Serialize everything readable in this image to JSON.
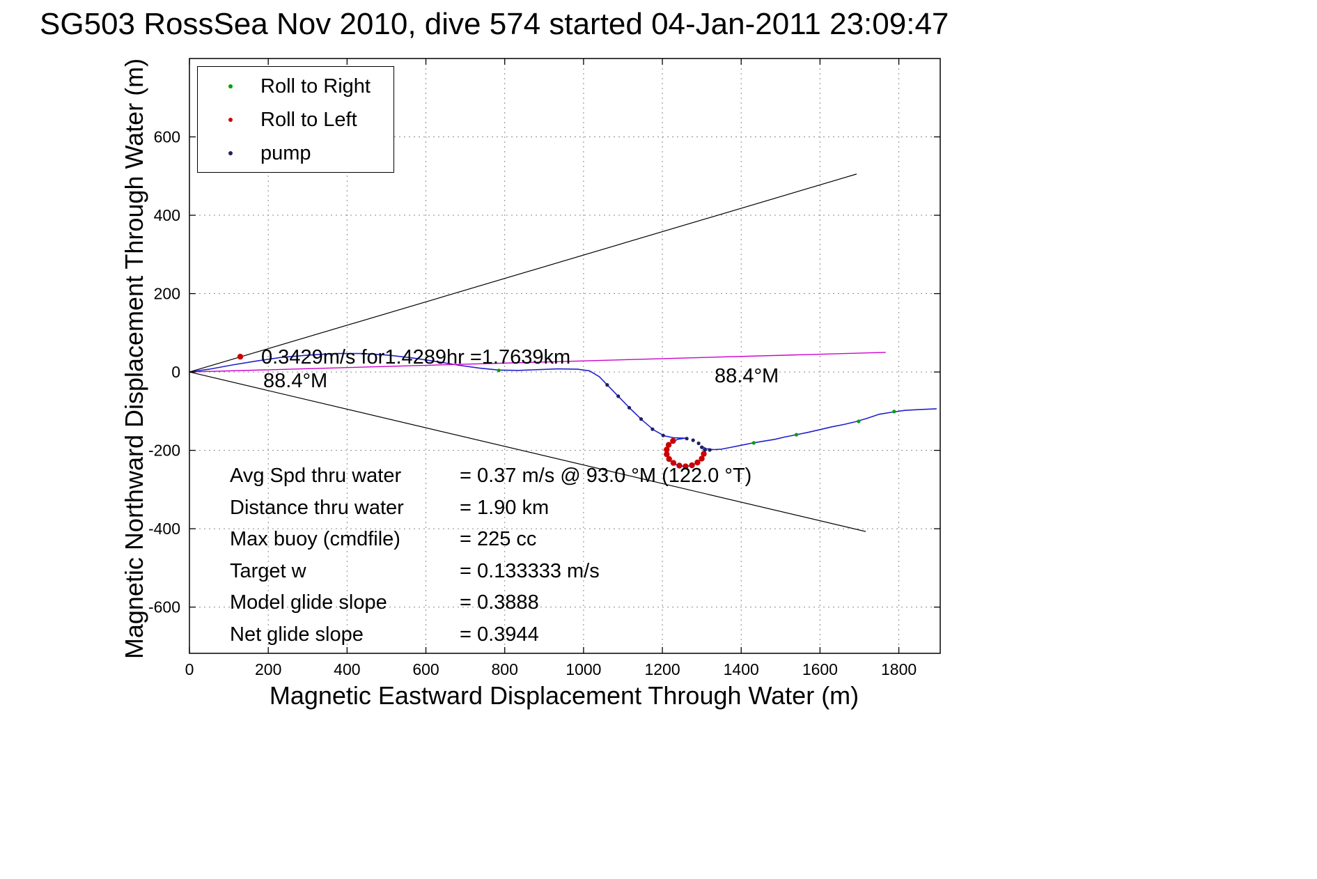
{
  "figure": {
    "title": "SG503 RossSea Nov 2010, dive 574 started 04-Jan-2011 23:09:47",
    "xlabel": "Magnetic Eastward Displacement Through Water (m)",
    "ylabel": "Magnetic Northward Displacement Through Water (m)"
  },
  "legend": {
    "items": [
      {
        "name": "roll-to-right",
        "label": "Roll to Right",
        "color": "#00a000"
      },
      {
        "name": "roll-to-left",
        "label": "Roll to Left",
        "color": "#cc0000"
      },
      {
        "name": "pump",
        "label": "pump",
        "color": "#202060"
      }
    ]
  },
  "annotations": {
    "run_summary": "0.3429m/s for1.4289hr =1.7639km",
    "heading_left": "88.4°M",
    "heading_right": "88.4°M"
  },
  "stats": {
    "rows": [
      {
        "label": "Avg Spd thru water",
        "value": "=  0.37 m/s @  93.0 °M (122.0 °T)"
      },
      {
        "label": "Distance thru water",
        "value": "=  1.90 km"
      },
      {
        "label": "Max buoy (cmdfile)",
        "value": "= 225 cc"
      },
      {
        "label": "Target w",
        "value": "= 0.133333 m/s"
      },
      {
        "label": "Model glide slope",
        "value": "= 0.3888"
      },
      {
        "label": "Net glide slope",
        "value": "= 0.3944"
      }
    ]
  },
  "chart_data": {
    "type": "line",
    "title": "SG503 RossSea Nov 2010, dive 574 started 04-Jan-2011 23:09:47",
    "xlabel": "Magnetic Eastward Displacement Through Water (m)",
    "ylabel": "Magnetic Northward Displacement Through Water (m)",
    "xlim": [
      0,
      1905
    ],
    "ylim": [
      -718,
      800
    ],
    "x_ticks": [
      0,
      200,
      400,
      600,
      800,
      1000,
      1200,
      1400,
      1600,
      1800
    ],
    "y_ticks": [
      -600,
      -400,
      -200,
      0,
      200,
      400,
      600
    ],
    "grid": "dotted",
    "legend_position": "top-left",
    "series": [
      {
        "name": "track-through-water",
        "color": "#2020cc",
        "width": 1.6,
        "points": [
          [
            0,
            0
          ],
          [
            50,
            7
          ],
          [
            110,
            18
          ],
          [
            170,
            28
          ],
          [
            230,
            37
          ],
          [
            300,
            43
          ],
          [
            370,
            47
          ],
          [
            440,
            47
          ],
          [
            505,
            43
          ],
          [
            565,
            36
          ],
          [
            625,
            27
          ],
          [
            685,
            17
          ],
          [
            735,
            10
          ],
          [
            785,
            5
          ],
          [
            835,
            4
          ],
          [
            885,
            6
          ],
          [
            935,
            8
          ],
          [
            985,
            7
          ],
          [
            1015,
            3
          ],
          [
            1040,
            -12
          ],
          [
            1065,
            -38
          ],
          [
            1092,
            -66
          ],
          [
            1120,
            -95
          ],
          [
            1150,
            -124
          ],
          [
            1178,
            -148
          ],
          [
            1205,
            -163
          ],
          [
            1230,
            -168
          ],
          [
            1258,
            -169
          ],
          [
            1238,
            -172
          ],
          [
            1221,
            -182
          ],
          [
            1212,
            -196
          ],
          [
            1211,
            -211
          ],
          [
            1219,
            -226
          ],
          [
            1234,
            -236
          ],
          [
            1254,
            -241
          ],
          [
            1274,
            -239
          ],
          [
            1292,
            -230
          ],
          [
            1303,
            -217
          ],
          [
            1306,
            -202
          ],
          [
            1301,
            -190
          ],
          [
            1312,
            -196
          ],
          [
            1330,
            -198
          ],
          [
            1350,
            -197
          ],
          [
            1375,
            -192
          ],
          [
            1400,
            -187
          ],
          [
            1430,
            -181
          ],
          [
            1455,
            -177
          ],
          [
            1485,
            -172
          ],
          [
            1510,
            -166
          ],
          [
            1540,
            -160
          ],
          [
            1570,
            -154
          ],
          [
            1600,
            -147
          ],
          [
            1630,
            -140
          ],
          [
            1660,
            -134
          ],
          [
            1690,
            -127
          ],
          [
            1720,
            -118
          ],
          [
            1750,
            -108
          ],
          [
            1780,
            -103
          ],
          [
            1815,
            -98
          ],
          [
            1850,
            -96
          ],
          [
            1895,
            -94
          ]
        ]
      },
      {
        "name": "desired-heading-88-4M",
        "color": "#cc00cc",
        "width": 1.4,
        "points": [
          [
            0,
            0
          ],
          [
            1766,
            50
          ]
        ]
      },
      {
        "name": "bearing-envelope-upper",
        "color": "#000000",
        "width": 1.2,
        "points": [
          [
            0,
            0
          ],
          [
            1692,
            505
          ]
        ]
      },
      {
        "name": "bearing-envelope-lower",
        "color": "#000000",
        "width": 1.2,
        "points": [
          [
            0,
            0
          ],
          [
            1715,
            -407
          ]
        ]
      }
    ],
    "markers": [
      {
        "name": "roll-to-right",
        "color": "#00a000",
        "size": 2.6,
        "points": [
          [
            785,
            4
          ],
          [
            1432,
            -181
          ],
          [
            1540,
            -160
          ],
          [
            1698,
            -126
          ],
          [
            1788,
            -101
          ]
        ]
      },
      {
        "name": "roll-to-left",
        "color": "#cc0000",
        "size": 4.2,
        "points": [
          [
            129,
            39
          ],
          [
            1227,
            -176
          ],
          [
            1216,
            -186
          ],
          [
            1211,
            -198
          ],
          [
            1211,
            -210
          ],
          [
            1217,
            -222
          ],
          [
            1228,
            -232
          ],
          [
            1243,
            -239
          ],
          [
            1259,
            -241
          ],
          [
            1275,
            -238
          ],
          [
            1289,
            -231
          ],
          [
            1300,
            -221
          ],
          [
            1305,
            -209
          ]
        ]
      },
      {
        "name": "pump",
        "color": "#202060",
        "size": 2.6,
        "points": [
          [
            1060,
            -33
          ],
          [
            1088,
            -62
          ],
          [
            1116,
            -91
          ],
          [
            1146,
            -120
          ],
          [
            1175,
            -146
          ],
          [
            1202,
            -162
          ],
          [
            1262,
            -170
          ],
          [
            1278,
            -174
          ],
          [
            1292,
            -182
          ],
          [
            1300,
            -192
          ],
          [
            1308,
            -199
          ],
          [
            1320,
            -199
          ]
        ]
      }
    ]
  }
}
